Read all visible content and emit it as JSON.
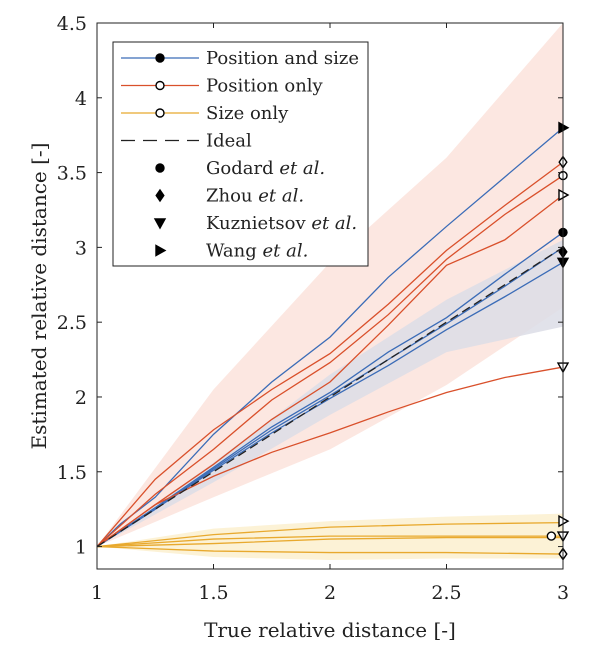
{
  "chart_data": {
    "type": "line",
    "xlabel": "True relative distance [-]",
    "ylabel": "Estimated relative distance [-]",
    "xlim": [
      1,
      3
    ],
    "ylim": [
      0.85,
      4.5
    ],
    "xticks": [
      1,
      1.5,
      2,
      2.5,
      3
    ],
    "yticks": [
      1,
      1.5,
      2,
      2.5,
      3,
      3.5,
      4,
      4.5
    ],
    "xtick_labels": [
      "1",
      "1.5",
      "2",
      "2.5",
      "3"
    ],
    "ytick_labels": [
      "1",
      "1.5",
      "2",
      "2.5",
      "3",
      "3.5",
      "4",
      "4.5"
    ],
    "grid": false,
    "legend_position": "top-left",
    "colors": {
      "position_and_size": "#3b6cb7",
      "position_only": "#d9502b",
      "size_only": "#e8a92e",
      "ideal": "#222222",
      "band_position_and_size": "#dcdde6",
      "band_position_only": "#fbe3dc",
      "band_size_only": "#fbf0cf"
    },
    "legend": [
      {
        "key": "position_and_size",
        "label": "Position and size",
        "style": "line",
        "color": "#3b6cb7",
        "marker": "filled-circle"
      },
      {
        "key": "position_only",
        "label": "Position only",
        "style": "line",
        "color": "#d9502b",
        "marker": "open-circle"
      },
      {
        "key": "size_only",
        "label": "Size only",
        "style": "line",
        "color": "#e8a92e",
        "marker": "open-circle"
      },
      {
        "key": "ideal",
        "label": "Ideal",
        "style": "dashed",
        "color": "#222222",
        "marker": "none"
      },
      {
        "key": "godard",
        "label_plain": "Godard",
        "label_italic": "et al.",
        "marker": "circle"
      },
      {
        "key": "zhou",
        "label_plain": "Zhou",
        "label_italic": "et al.",
        "marker": "diamond"
      },
      {
        "key": "kuznietsov",
        "label_plain": "Kuznietsov",
        "label_italic": "et al.",
        "marker": "triangle-down"
      },
      {
        "key": "wang",
        "label_plain": "Wang",
        "label_italic": "et al.",
        "marker": "triangle-right"
      }
    ],
    "bands": [
      {
        "name": "Position only",
        "color": "#fbe3dc",
        "x": [
          1,
          1.5,
          2,
          2.5,
          3
        ],
        "lower": [
          1,
          1.33,
          1.65,
          2.08,
          2.6
        ],
        "upper": [
          1,
          2.05,
          2.9,
          3.6,
          4.5
        ]
      },
      {
        "name": "Position and size",
        "color": "#dcdde6",
        "x": [
          1,
          1.5,
          2,
          2.5,
          3
        ],
        "lower": [
          1,
          1.43,
          1.88,
          2.3,
          2.47
        ],
        "upper": [
          1,
          1.56,
          2.15,
          2.65,
          3.05
        ]
      },
      {
        "name": "Size only",
        "color": "#fbf0cf",
        "x": [
          1,
          1.5,
          2,
          2.5,
          3
        ],
        "lower": [
          1,
          0.93,
          0.91,
          0.92,
          0.92
        ],
        "upper": [
          1,
          1.12,
          1.17,
          1.2,
          1.22
        ]
      }
    ],
    "series": [
      {
        "name": "Position and size",
        "group": "position_and_size",
        "x": [
          1,
          1.1,
          1.25,
          1.5,
          1.75,
          2,
          2.25,
          2.5,
          2.75,
          3
        ],
        "values": [
          1,
          1.15,
          1.33,
          1.75,
          2.1,
          2.4,
          2.8,
          3.14,
          3.47,
          3.8
        ]
      },
      {
        "name": "Position and size",
        "group": "position_and_size",
        "x": [
          1,
          1.25,
          1.5,
          1.75,
          2,
          2.25,
          2.5,
          2.75,
          3
        ],
        "values": [
          1,
          1.26,
          1.53,
          1.8,
          2.03,
          2.3,
          2.53,
          2.82,
          3.1
        ]
      },
      {
        "name": "Position and size",
        "group": "position_and_size",
        "x": [
          1,
          1.25,
          1.5,
          1.75,
          2,
          2.25,
          2.5,
          2.75,
          3
        ],
        "values": [
          1,
          1.25,
          1.52,
          1.78,
          2.01,
          2.25,
          2.49,
          2.74,
          3.0
        ]
      },
      {
        "name": "Position and size",
        "group": "position_and_size",
        "x": [
          1,
          1.25,
          1.5,
          1.75,
          2,
          2.25,
          2.5,
          2.75,
          3
        ],
        "values": [
          1,
          1.25,
          1.51,
          1.76,
          1.99,
          2.21,
          2.45,
          2.67,
          2.9
        ]
      },
      {
        "name": "Position only",
        "group": "position_only",
        "x": [
          1,
          1.25,
          1.5,
          1.75,
          2,
          2.25,
          2.5,
          2.75,
          3
        ],
        "values": [
          1,
          1.45,
          1.78,
          2.05,
          2.29,
          2.62,
          2.98,
          3.28,
          3.57
        ]
      },
      {
        "name": "Position only",
        "group": "position_only",
        "x": [
          1,
          1.25,
          1.5,
          1.75,
          2,
          2.25,
          2.5,
          2.75,
          3
        ],
        "values": [
          1,
          1.35,
          1.65,
          1.98,
          2.23,
          2.55,
          2.92,
          3.22,
          3.48
        ]
      },
      {
        "name": "Position only",
        "group": "position_only",
        "x": [
          1,
          1.25,
          1.5,
          1.75,
          2,
          2.25,
          2.5,
          2.75,
          3
        ],
        "values": [
          1,
          1.28,
          1.55,
          1.85,
          2.1,
          2.48,
          2.88,
          3.05,
          3.35
        ]
      },
      {
        "name": "Position only",
        "group": "position_only",
        "x": [
          1,
          1.25,
          1.5,
          1.75,
          2,
          2.25,
          2.5,
          2.75,
          3
        ],
        "values": [
          1,
          1.28,
          1.47,
          1.63,
          1.76,
          1.9,
          2.03,
          2.13,
          2.2
        ]
      },
      {
        "name": "Size only",
        "group": "size_only",
        "x": [
          1,
          1.5,
          2,
          2.5,
          3
        ],
        "values": [
          1,
          1.08,
          1.13,
          1.15,
          1.16
        ]
      },
      {
        "name": "Size only",
        "group": "size_only",
        "x": [
          1,
          1.5,
          2,
          2.5,
          3
        ],
        "values": [
          1,
          1.05,
          1.07,
          1.07,
          1.07
        ]
      },
      {
        "name": "Size only",
        "group": "size_only",
        "x": [
          1,
          1.5,
          2,
          2.5,
          3
        ],
        "values": [
          1,
          1.02,
          1.05,
          1.06,
          1.06
        ]
      },
      {
        "name": "Size only",
        "group": "size_only",
        "x": [
          1,
          1.5,
          2,
          2.5,
          3
        ],
        "values": [
          1,
          0.97,
          0.96,
          0.96,
          0.95
        ]
      }
    ],
    "ideal": {
      "name": "Ideal",
      "x": [
        1,
        3
      ],
      "values": [
        1,
        3
      ]
    },
    "endpoint_markers": [
      {
        "method": "Godard",
        "group": "position_and_size",
        "marker": "circle",
        "filled": true,
        "x": 3,
        "y": 3.1
      },
      {
        "method": "Zhou",
        "group": "position_and_size",
        "marker": "diamond",
        "filled": true,
        "x": 3,
        "y": 2.97
      },
      {
        "method": "Kuznietsov",
        "group": "position_and_size",
        "marker": "triangle-down",
        "filled": true,
        "x": 3,
        "y": 2.9
      },
      {
        "method": "Wang",
        "group": "position_and_size",
        "marker": "triangle-right",
        "filled": true,
        "x": 3,
        "y": 3.8
      },
      {
        "method": "Godard",
        "group": "position_only",
        "marker": "circle",
        "filled": false,
        "x": 3,
        "y": 3.48
      },
      {
        "method": "Zhou",
        "group": "position_only",
        "marker": "diamond",
        "filled": false,
        "x": 3,
        "y": 3.57
      },
      {
        "method": "Kuznietsov",
        "group": "position_only",
        "marker": "triangle-down",
        "filled": false,
        "x": 3,
        "y": 2.2
      },
      {
        "method": "Wang",
        "group": "position_only",
        "marker": "triangle-right",
        "filled": false,
        "x": 3,
        "y": 3.35
      },
      {
        "method": "Godard",
        "group": "size_only",
        "marker": "circle",
        "filled": false,
        "x": 2.95,
        "y": 1.07
      },
      {
        "method": "Zhou",
        "group": "size_only",
        "marker": "diamond",
        "filled": false,
        "x": 3,
        "y": 0.95
      },
      {
        "method": "Kuznietsov",
        "group": "size_only",
        "marker": "triangle-down",
        "filled": false,
        "x": 3,
        "y": 1.07
      },
      {
        "method": "Wang",
        "group": "size_only",
        "marker": "triangle-right",
        "filled": false,
        "x": 3,
        "y": 1.17
      }
    ]
  }
}
